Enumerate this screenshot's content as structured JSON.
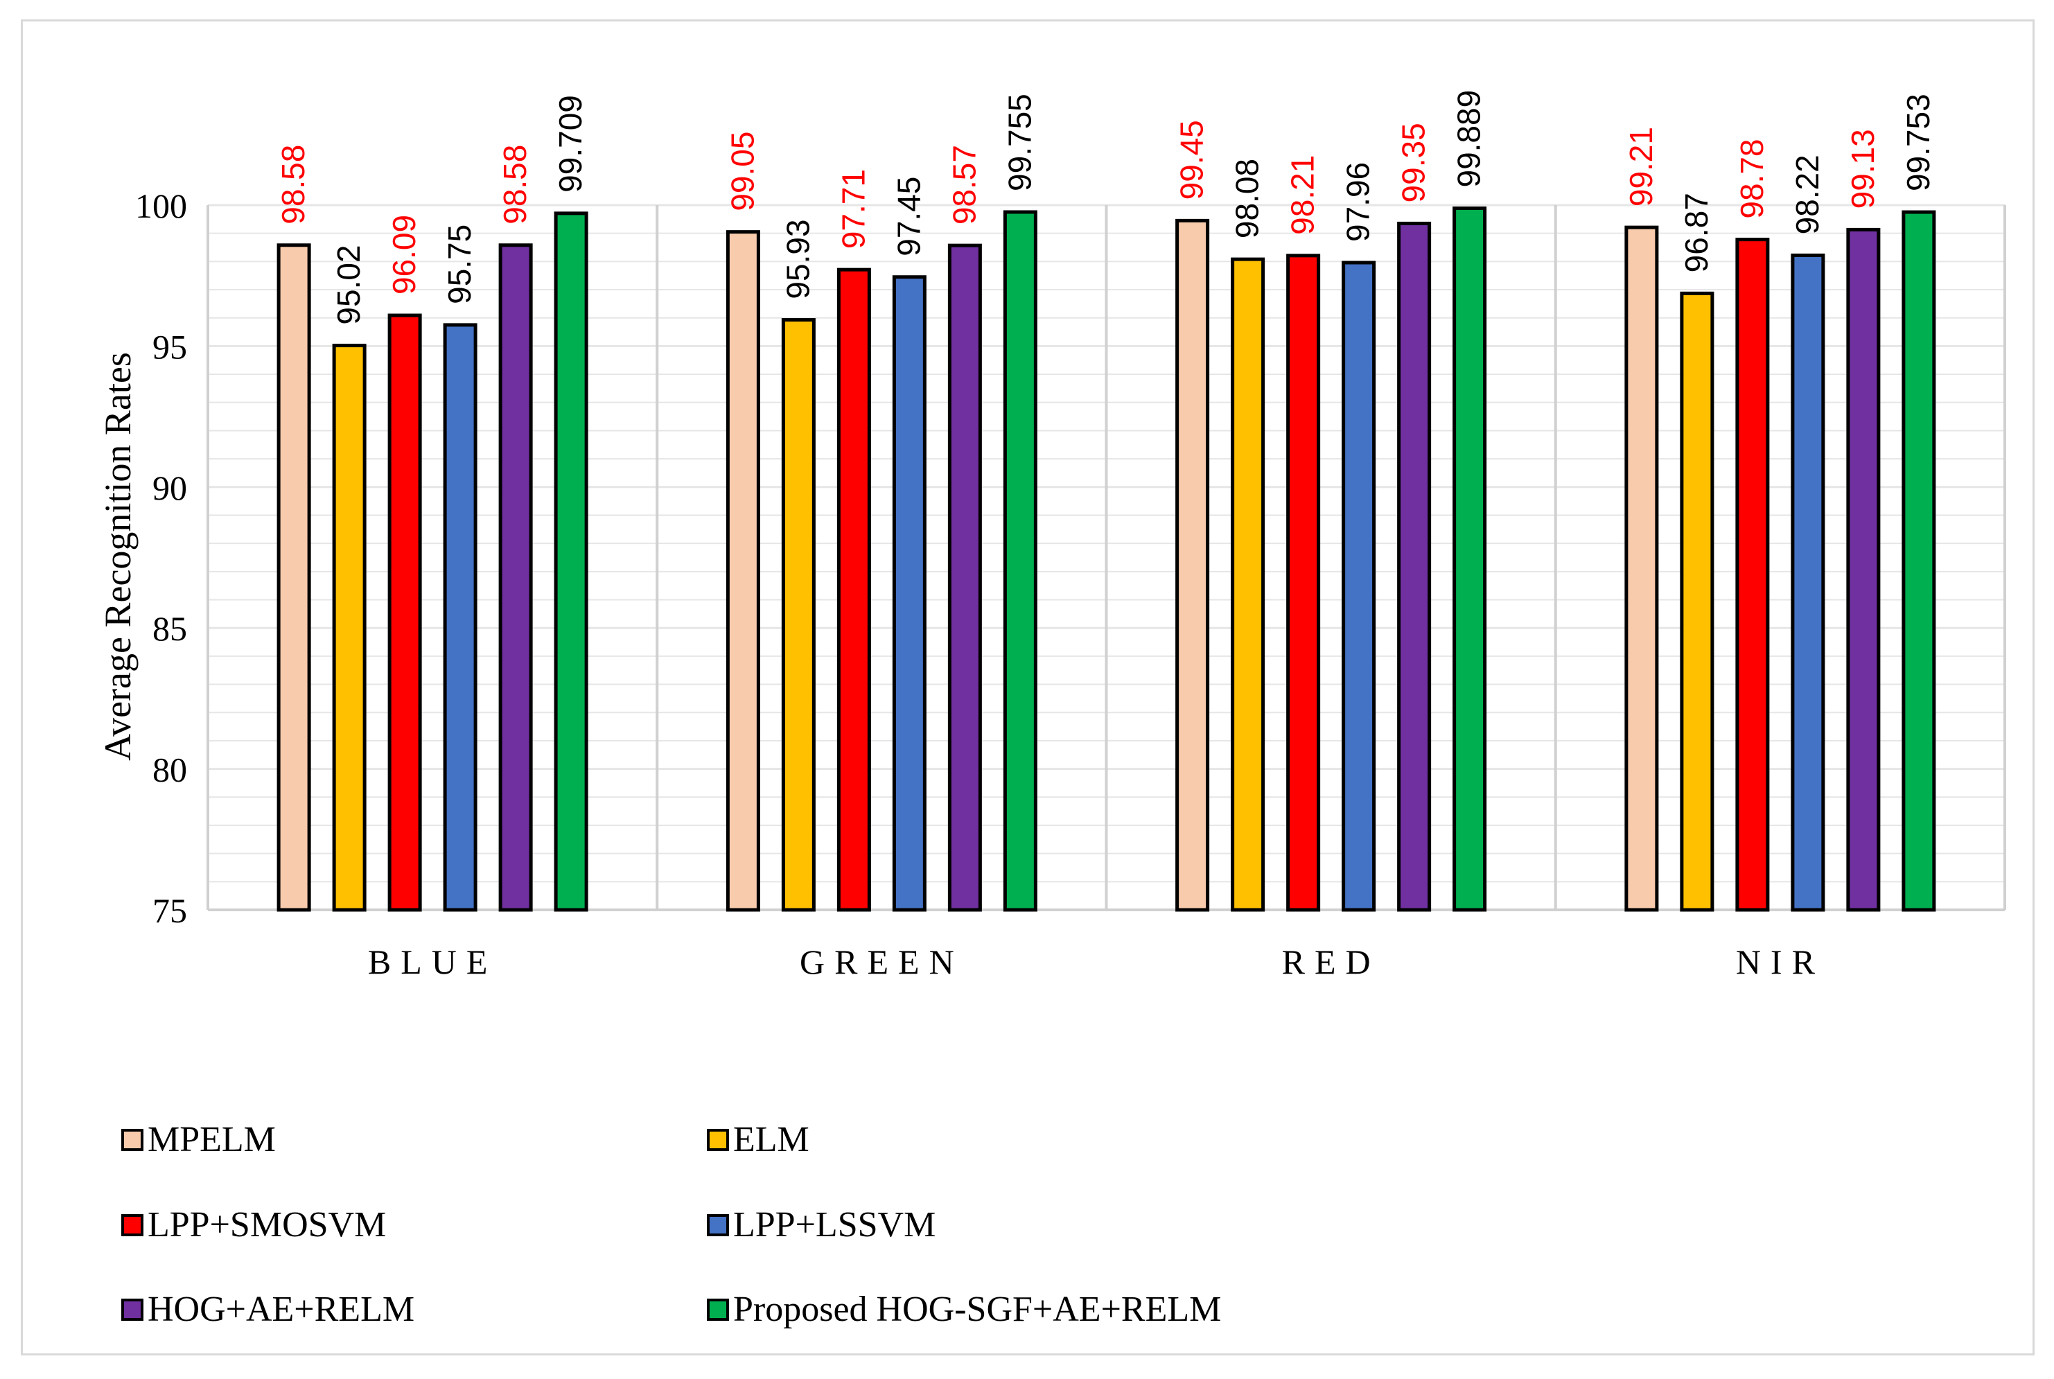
{
  "chart_data": {
    "type": "bar",
    "title": "",
    "xlabel": "",
    "ylabel": "Average Recognition Rates",
    "ylim": [
      75,
      100
    ],
    "yticks": [
      "75",
      "80",
      "85",
      "90",
      "95",
      "100"
    ],
    "categories": [
      "BLUE",
      "GREEN",
      "RED",
      "NIR"
    ],
    "series": [
      {
        "name": "MPELM",
        "color": "#f8cbad",
        "label_color": "#ff0000",
        "values": [
          98.58,
          99.05,
          99.45,
          99.21
        ],
        "labels": [
          "98.58",
          "99.05",
          "99.45",
          "99.21"
        ]
      },
      {
        "name": "ELM",
        "color": "#ffc000",
        "label_color": "#000000",
        "values": [
          95.02,
          95.93,
          98.08,
          96.87
        ],
        "labels": [
          "95.02",
          "95.93",
          "98.08",
          "96.87"
        ]
      },
      {
        "name": "LPP+SMOSVM",
        "color": "#ff0000",
        "label_color": "#ff0000",
        "values": [
          96.09,
          97.71,
          98.21,
          98.78
        ],
        "labels": [
          "96.09",
          "97.71",
          "98.21",
          "98.78"
        ]
      },
      {
        "name": "LPP+LSSVM",
        "color": "#4472c4",
        "label_color": "#000000",
        "values": [
          95.75,
          97.45,
          97.96,
          98.22
        ],
        "labels": [
          "95.75",
          "97.45",
          "97.96",
          "98.22"
        ]
      },
      {
        "name": "HOG+AE+RELM",
        "color": "#7030a0",
        "label_color": "#ff0000",
        "values": [
          98.58,
          98.57,
          99.35,
          99.13
        ],
        "labels": [
          "98.58",
          "98.57",
          "99.35",
          "99.13"
        ]
      },
      {
        "name": "Proposed HOG-SGF+AE+RELM",
        "color": "#00b050",
        "label_color": "#000000",
        "values": [
          99.709,
          99.755,
          99.889,
          99.753
        ],
        "labels": [
          "99.709",
          "99.755",
          "99.889",
          "99.753"
        ]
      }
    ],
    "legend_position": "bottom",
    "grid": true
  }
}
